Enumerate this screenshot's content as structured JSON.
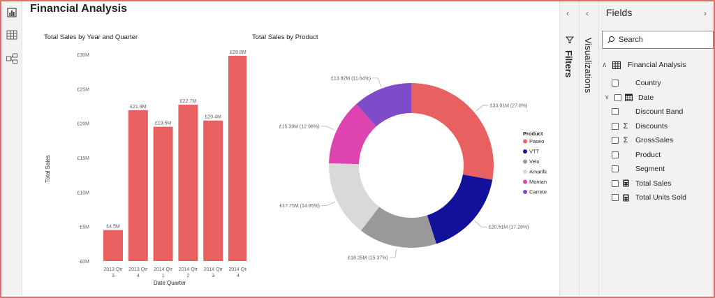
{
  "report": {
    "title": "Financial Analysis"
  },
  "left_nav": [
    {
      "name": "report-view-icon"
    },
    {
      "name": "data-view-icon"
    },
    {
      "name": "model-view-icon"
    }
  ],
  "colors": {
    "bar": "#e86060",
    "frame_border": "#e66a6a",
    "slices": [
      "#e86060",
      "#11119a",
      "#999999",
      "#d9d9d9",
      "#dd44b0",
      "#7e4cc8"
    ]
  },
  "bar_chart": {
    "title": "Total Sales by Year and Quarter",
    "xlabel": "Date Quarter",
    "ylabel": "Total Sales",
    "y_ticks": [
      "£0M",
      "£5M",
      "£10M",
      "£15M",
      "£20M",
      "£25M",
      "£30M"
    ]
  },
  "donut_chart": {
    "title": "Total Sales by Product",
    "legend_title": "Product"
  },
  "chart_data": [
    {
      "type": "bar",
      "title": "Total Sales by Year and Quarter",
      "xlabel": "Date Quarter",
      "ylabel": "Total Sales",
      "categories": [
        [
          "2013 Qtr",
          "3"
        ],
        [
          "2013 Qtr",
          "4"
        ],
        [
          "2014 Qtr",
          "1"
        ],
        [
          "2014 Qtr",
          "2"
        ],
        [
          "2014 Qtr",
          "3"
        ],
        [
          "2014 Qtr",
          "4"
        ]
      ],
      "values": [
        4.5,
        21.9,
        19.5,
        22.7,
        20.4,
        29.8
      ],
      "data_labels": [
        "£4.5M",
        "£21.9M",
        "£19.5M",
        "£22.7M",
        "£20.4M",
        "£29.8M"
      ],
      "ylim": [
        0,
        30
      ],
      "grid": false
    },
    {
      "type": "pie",
      "title": "Total Sales by Product",
      "legend_title": "Product",
      "legend_position": "right",
      "slices": [
        {
          "name": "Paseo",
          "value": 33.01,
          "label": "£33.01M (27.8%)"
        },
        {
          "name": "VTT",
          "value": 20.51,
          "label": "£20.51M (17.28%)"
        },
        {
          "name": "Velo",
          "value": 18.25,
          "label": "£18.25M (15.37%)"
        },
        {
          "name": "Amarilla",
          "value": 17.75,
          "label": "£17.75M (14.95%)"
        },
        {
          "name": "Montana",
          "value": 15.39,
          "label": "£15.39M (12.96%)"
        },
        {
          "name": "Carretera",
          "value": 13.82,
          "label": "£13.82M (11.64%)"
        }
      ]
    }
  ],
  "filters_pane": {
    "label": "Filters"
  },
  "visualizations_pane": {
    "label": "Visualizations"
  },
  "fields_pane": {
    "title": "Fields",
    "search_placeholder": "Search",
    "table_name": "Financial Analysis",
    "fields": [
      {
        "label": "Country",
        "icon": "none"
      },
      {
        "label": "Date",
        "icon": "calendar-icon",
        "expandable": true
      },
      {
        "label": "Discount Band",
        "icon": "none"
      },
      {
        "label": "Discounts",
        "icon": "sigma-icon"
      },
      {
        "label": "GrossSales",
        "icon": "sigma-icon"
      },
      {
        "label": "Product",
        "icon": "none"
      },
      {
        "label": "Segment",
        "icon": "none"
      },
      {
        "label": "Total Sales",
        "icon": "calculator-icon"
      },
      {
        "label": "Total Units Sold",
        "icon": "calculator-icon"
      }
    ]
  }
}
